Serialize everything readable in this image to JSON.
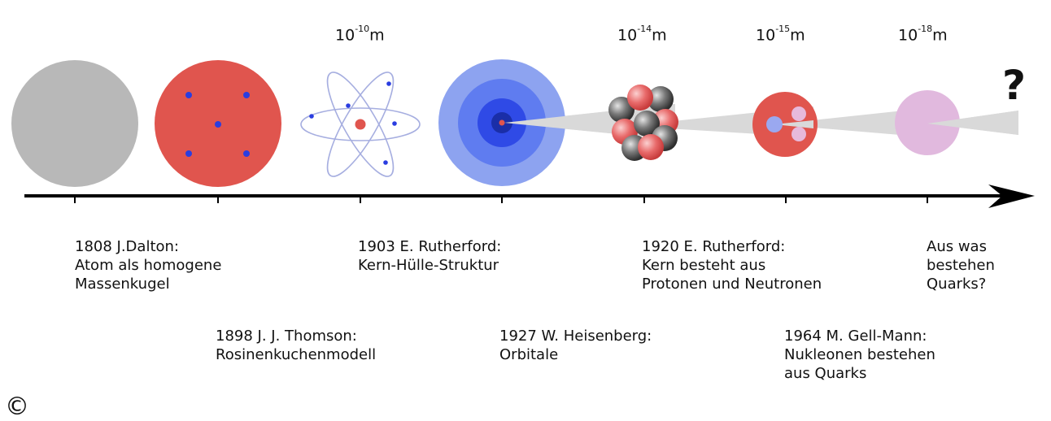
{
  "scales": [
    {
      "base": "10",
      "exp": "-10",
      "unit": "m"
    },
    {
      "base": "10",
      "exp": "-14",
      "unit": "m"
    },
    {
      "base": "10",
      "exp": "-15",
      "unit": "m"
    },
    {
      "base": "10",
      "exp": "-18",
      "unit": "m"
    }
  ],
  "question_mark": "?",
  "events": [
    {
      "lines": [
        "1808 J.Dalton:",
        "Atom als homogene",
        "Massenkugel"
      ]
    },
    {
      "lines": [
        "1898 J. J. Thomson:",
        "Rosinenkuchenmodell"
      ]
    },
    {
      "lines": [
        "1903 E. Rutherford:",
        "Kern-Hülle-Struktur"
      ]
    },
    {
      "lines": [
        "1927 W. Heisenberg:",
        "Orbitale"
      ]
    },
    {
      "lines": [
        "1920 E. Rutherford:",
        "Kern besteht aus",
        "Protonen und Neutronen"
      ]
    },
    {
      "lines": [
        "1964 M. Gell-Mann:",
        "Nukleonen bestehen",
        "aus Quarks"
      ]
    },
    {
      "lines": [
        "Aus was",
        "bestehen",
        "Quarks?"
      ]
    }
  ],
  "copyright": "©",
  "colors": {
    "dalton_gray": "#b8b8b8",
    "thomson_red": "#e0554e",
    "electron_blue": "#2a3de0",
    "orbit_line": "#a6aee0",
    "orbital_outer": "#8da3f0",
    "orbital_mid": "#5f7cf0",
    "orbital_inner": "#2f4ae6",
    "orbital_core": "#1a2ea8",
    "zoom_cone": "#d9d9d9",
    "nucleon_red": "#e86a6a",
    "nucleon_gray": "#505050",
    "quark_pink": "#e7b9db",
    "quark_blue": "#9aa8f0",
    "axis": "#000000"
  }
}
